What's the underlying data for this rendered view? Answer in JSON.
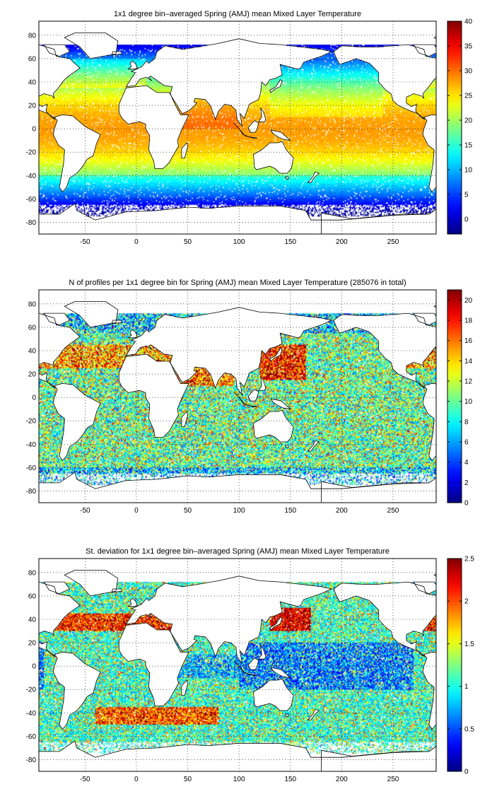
{
  "chart_data": [
    {
      "type": "heatmap",
      "title": "1x1 degree bin–averaged Spring (AMJ) mean Mixed Layer Temperature",
      "xlim": [
        -95,
        292
      ],
      "ylim": [
        -90,
        92
      ],
      "xticks": [
        -50,
        0,
        50,
        100,
        150,
        200,
        250
      ],
      "yticks": [
        -80,
        -60,
        -40,
        -20,
        0,
        20,
        40,
        60,
        80
      ],
      "colorbar": {
        "min": -3,
        "max": 40,
        "ticks": [
          0,
          5,
          10,
          15,
          20,
          25,
          30,
          35,
          40
        ],
        "colormap": "jet"
      },
      "grid": true,
      "field": "temperature"
    },
    {
      "type": "heatmap",
      "title": "N of profiles per 1x1 degree bin for Spring (AMJ) mean Mixed Layer Temperature  (285076 in total)",
      "xlim": [
        -95,
        292
      ],
      "ylim": [
        -90,
        92
      ],
      "xticks": [
        -50,
        0,
        50,
        100,
        150,
        200,
        250
      ],
      "yticks": [
        -80,
        -60,
        -40,
        -20,
        0,
        20,
        40,
        60,
        80
      ],
      "colorbar": {
        "min": 0,
        "max": 21,
        "ticks": [
          0,
          2,
          4,
          6,
          8,
          10,
          12,
          14,
          16,
          18,
          20
        ],
        "colormap": "jet"
      },
      "grid": true,
      "field": "count"
    },
    {
      "type": "heatmap",
      "title": "St. deviation for 1x1 degree bin–averaged Spring (AMJ) mean Mixed Layer Temperature",
      "xlim": [
        -95,
        292
      ],
      "ylim": [
        -90,
        92
      ],
      "xticks": [
        -50,
        0,
        50,
        100,
        150,
        200,
        250
      ],
      "yticks": [
        -80,
        -60,
        -40,
        -20,
        0,
        20,
        40,
        60,
        80
      ],
      "colorbar": {
        "min": 0,
        "max": 2.5,
        "ticks": [
          0,
          0.5,
          1,
          1.5,
          2,
          2.5
        ],
        "colormap": "jet"
      },
      "grid": true,
      "field": "stdev"
    }
  ]
}
